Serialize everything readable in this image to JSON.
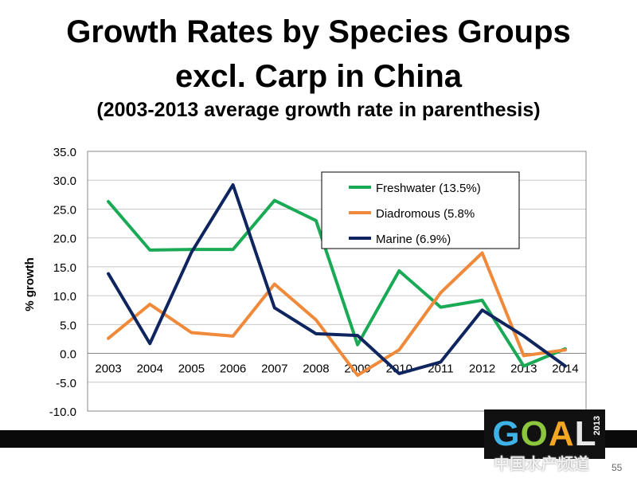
{
  "slide": {
    "title_line1": "Growth Rates by Species Groups",
    "title_line2": "excl. Carp in China",
    "subtitle": "(2003-2013 average growth rate in parenthesis)",
    "page_number": "55",
    "logo_text": "GOAL",
    "logo_year": "2013",
    "watermark": "中国水产频道"
  },
  "colors": {
    "freshwater": "#1aaa55",
    "diadromous": "#f08a3a",
    "marine": "#0f2560",
    "grid": "#c8c8c8",
    "axis": "#888888"
  },
  "chart_data": {
    "type": "line",
    "title": "",
    "xlabel": "",
    "ylabel": "% growth",
    "ylim": [
      -10,
      35
    ],
    "yticks": [
      "35.0",
      "30.0",
      "25.0",
      "20.0",
      "15.0",
      "10.0",
      "5.0",
      "0.0",
      "-5.0",
      "-10.0"
    ],
    "grid": true,
    "legend_position": "top-right",
    "categories": [
      "2003",
      "2004",
      "2005",
      "2006",
      "2007",
      "2008",
      "2009",
      "2010",
      "2011",
      "2012",
      "2013",
      "2014"
    ],
    "series": [
      {
        "name": "Freshwater (13.5%)",
        "color_key": "freshwater",
        "values": [
          26.3,
          17.9,
          18.0,
          18.0,
          26.5,
          23.0,
          1.5,
          14.3,
          8.0,
          9.2,
          -2.2,
          0.8
        ]
      },
      {
        "name": "Diadromous (5.8%",
        "color_key": "diadromous",
        "values": [
          2.6,
          8.5,
          3.6,
          3.0,
          12.0,
          5.8,
          -3.8,
          0.6,
          10.5,
          17.4,
          -0.4,
          0.6
        ]
      },
      {
        "name": "Marine (6.9%)",
        "color_key": "marine",
        "values": [
          13.8,
          1.7,
          17.5,
          29.2,
          7.9,
          3.4,
          3.1,
          -3.5,
          -1.5,
          7.5,
          3.0,
          -2.2
        ]
      }
    ]
  }
}
